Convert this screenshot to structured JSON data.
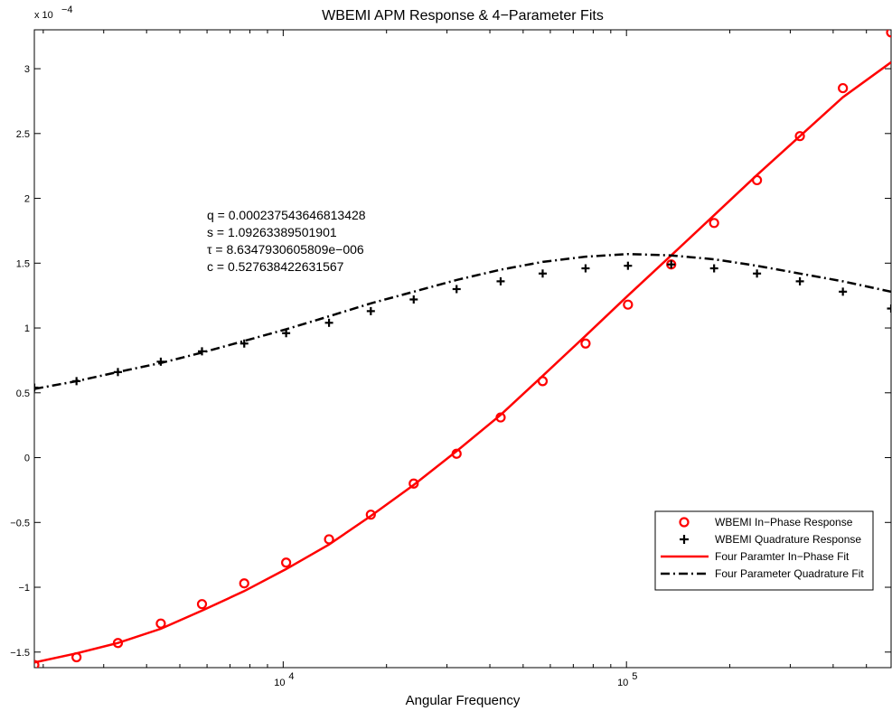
{
  "chart_data": {
    "type": "line",
    "title": "WBEMI APM  Response & 4−Parameter Fits",
    "xlabel": "Angular Frequency",
    "ylabel": "",
    "x_scale": "log",
    "xlim": [
      1884,
      590000
    ],
    "ylim": [
      -0.000162,
      0.00033
    ],
    "y_exponent_label": "x 10",
    "y_exponent": "−4",
    "y_ticks": [
      {
        "value": -0.00015,
        "label": "−1.5"
      },
      {
        "value": -0.0001,
        "label": "−1"
      },
      {
        "value": -5e-05,
        "label": "−0.5"
      },
      {
        "value": 0,
        "label": "0"
      },
      {
        "value": 5e-05,
        "label": "0.5"
      },
      {
        "value": 0.0001,
        "label": "1"
      },
      {
        "value": 0.00015,
        "label": "1.5"
      },
      {
        "value": 0.0002,
        "label": "2"
      },
      {
        "value": 0.00025,
        "label": "2.5"
      },
      {
        "value": 0.0003,
        "label": "3"
      }
    ],
    "x_ticks": [
      {
        "value": 10000,
        "base": "10",
        "exp": "4"
      },
      {
        "value": 100000,
        "base": "10",
        "exp": "5"
      }
    ],
    "grid": false,
    "legend_position": "bottom-right",
    "annotations": [
      "q = 0.000237543646813428",
      "s = 1.09263389501901",
      "τ = 8.6347930605809e−006",
      "c = 0.527638422631567"
    ],
    "series": [
      {
        "name": "WBEMI In−Phase Response",
        "style": "marker-circle",
        "color": "#ff0000",
        "points": [
          [
            1884,
            -0.00016
          ],
          [
            2500,
            -0.000154
          ],
          [
            3300,
            -0.000143
          ],
          [
            4400,
            -0.000128
          ],
          [
            5800,
            -0.000113
          ],
          [
            7700,
            -9.7e-05
          ],
          [
            10200,
            -8.1e-05
          ],
          [
            13600,
            -6.3e-05
          ],
          [
            18000,
            -4.4e-05
          ],
          [
            24000,
            -2e-05
          ],
          [
            32000,
            3e-06
          ],
          [
            43000,
            3.1e-05
          ],
          [
            57000,
            5.9e-05
          ],
          [
            76000,
            8.8e-05
          ],
          [
            101000,
            0.000118
          ],
          [
            135000,
            0.000149
          ],
          [
            180000,
            0.000181
          ],
          [
            240000,
            0.000214
          ],
          [
            320000,
            0.000248
          ],
          [
            427000,
            0.000285
          ],
          [
            590000,
            0.000328
          ]
        ]
      },
      {
        "name": "WBEMI Quadrature Response",
        "style": "marker-plus",
        "color": "#000000",
        "points": [
          [
            1884,
            5.4e-05
          ],
          [
            2500,
            5.9e-05
          ],
          [
            3300,
            6.6e-05
          ],
          [
            4400,
            7.4e-05
          ],
          [
            5800,
            8.2e-05
          ],
          [
            7700,
            8.8e-05
          ],
          [
            10200,
            9.6e-05
          ],
          [
            13600,
            0.000104
          ],
          [
            18000,
            0.000113
          ],
          [
            24000,
            0.000122
          ],
          [
            32000,
            0.00013
          ],
          [
            43000,
            0.000136
          ],
          [
            57000,
            0.000142
          ],
          [
            76000,
            0.000146
          ],
          [
            101000,
            0.000148
          ],
          [
            135000,
            0.000149
          ],
          [
            180000,
            0.000146
          ],
          [
            240000,
            0.000142
          ],
          [
            320000,
            0.000136
          ],
          [
            427000,
            0.000128
          ],
          [
            590000,
            0.000115
          ]
        ]
      },
      {
        "name": "Four Paramter In−Phase Fit",
        "style": "line-solid",
        "color": "#ff0000",
        "points": [
          [
            1884,
            -0.000158
          ],
          [
            2500,
            -0.000151
          ],
          [
            3300,
            -0.000143
          ],
          [
            4400,
            -0.000132
          ],
          [
            5800,
            -0.000118
          ],
          [
            7700,
            -0.000103
          ],
          [
            10200,
            -8.6e-05
          ],
          [
            13600,
            -6.7e-05
          ],
          [
            18000,
            -4.5e-05
          ],
          [
            24000,
            -2.1e-05
          ],
          [
            32000,
            5e-06
          ],
          [
            43000,
            3.3e-05
          ],
          [
            57000,
            6.3e-05
          ],
          [
            76000,
            9.4e-05
          ],
          [
            101000,
            0.000125
          ],
          [
            135000,
            0.000156
          ],
          [
            180000,
            0.000187
          ],
          [
            240000,
            0.000218
          ],
          [
            320000,
            0.000248
          ],
          [
            427000,
            0.000278
          ],
          [
            590000,
            0.000305
          ]
        ]
      },
      {
        "name": "Four Parameter Quadrature Fit",
        "style": "line-dashdot",
        "color": "#000000",
        "points": [
          [
            1884,
            5.3e-05
          ],
          [
            2500,
            5.9e-05
          ],
          [
            3300,
            6.6e-05
          ],
          [
            4400,
            7.3e-05
          ],
          [
            5800,
            8.1e-05
          ],
          [
            7700,
            9e-05
          ],
          [
            10200,
            9.9e-05
          ],
          [
            13600,
            0.000109
          ],
          [
            18000,
            0.000119
          ],
          [
            24000,
            0.000128
          ],
          [
            32000,
            0.000137
          ],
          [
            43000,
            0.000145
          ],
          [
            57000,
            0.000151
          ],
          [
            76000,
            0.000155
          ],
          [
            101000,
            0.000157
          ],
          [
            135000,
            0.000156
          ],
          [
            180000,
            0.000153
          ],
          [
            240000,
            0.000148
          ],
          [
            320000,
            0.000142
          ],
          [
            427000,
            0.000136
          ],
          [
            590000,
            0.000128
          ]
        ]
      }
    ]
  }
}
